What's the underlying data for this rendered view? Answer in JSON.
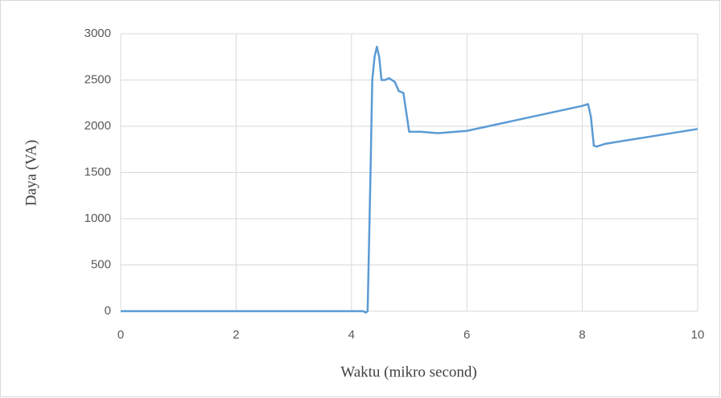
{
  "chart_data": {
    "type": "line",
    "x_label": "Waktu (mikro second)",
    "y_label": "Daya (VA)",
    "x": [
      0,
      4.2,
      4.25,
      4.28,
      4.33,
      4.36,
      4.4,
      4.44,
      4.48,
      4.52,
      4.58,
      4.65,
      4.75,
      4.82,
      4.9,
      4.95,
      5.0,
      5.2,
      5.5,
      6.0,
      8.0,
      8.1,
      8.15,
      8.2,
      8.25,
      8.4,
      10
    ],
    "series": [
      {
        "color": "#5b9bd5",
        "values": [
          0,
          0,
          -15,
          0,
          1500,
          2500,
          2750,
          2860,
          2750,
          2500,
          2500,
          2520,
          2480,
          2380,
          2360,
          2150,
          1940,
          1940,
          1925,
          1950,
          2220,
          2240,
          2100,
          1790,
          1780,
          1810,
          1970
        ]
      }
    ],
    "xlim": [
      0,
      10
    ],
    "xticks": [
      0,
      2,
      4,
      6,
      8,
      10
    ],
    "ylim": [
      0,
      3000
    ],
    "yticks": [
      0,
      500,
      1000,
      1500,
      2000,
      2500,
      3000
    ],
    "grid": true
  }
}
